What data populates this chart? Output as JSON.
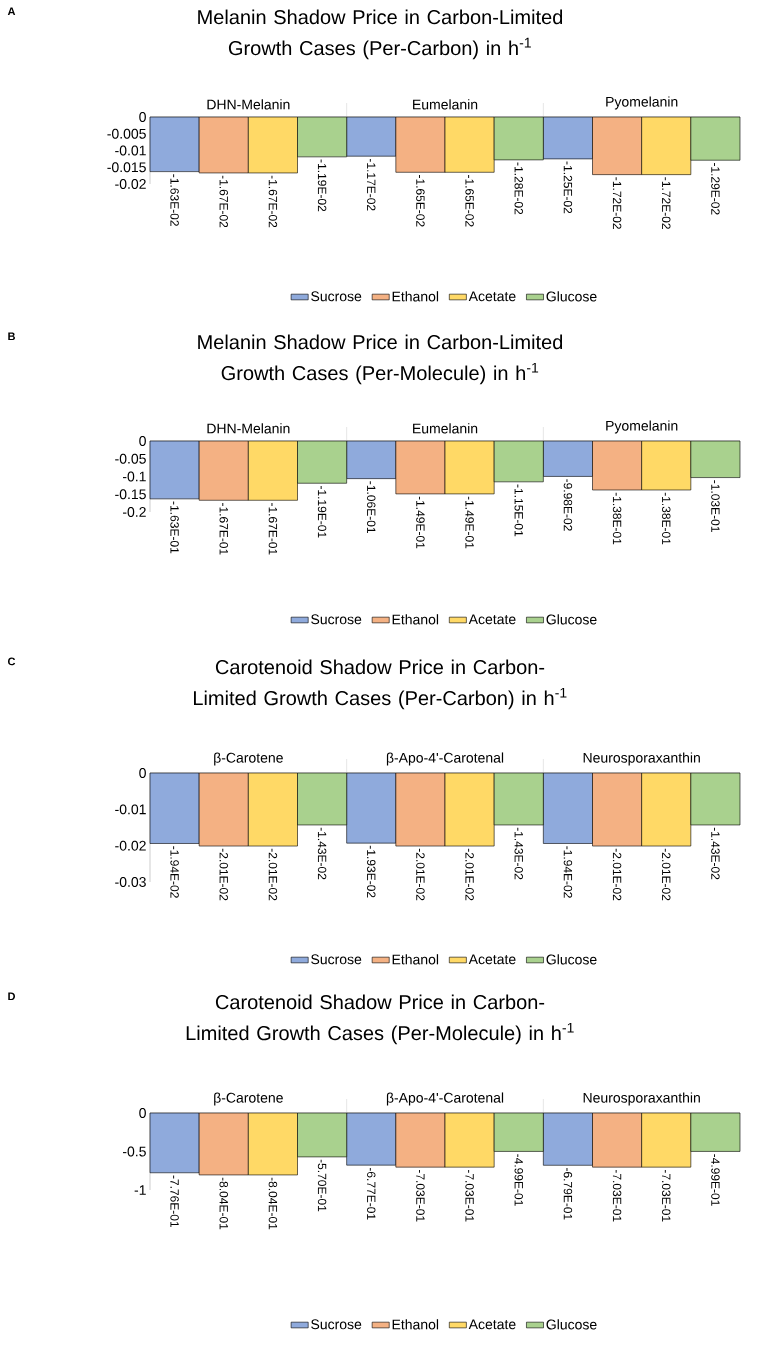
{
  "chart_data": [
    {
      "type": "bar",
      "title": "Melanin Shadow Price in Carbon-Limited Growth Cases (Per-Carbon) in h$^{-1}$",
      "annotations": [
        "A"
      ],
      "categories": [
        "DHN-Melanin",
        "Eumelanin",
        "Pyomelanin"
      ],
      "series": [
        {
          "name": "Sucrose",
          "color": "#8faadc",
          "values": [
            -0.0163,
            -0.0117,
            -0.0125
          ],
          "value_labels": [
            "-1.63E-02",
            "-1.17E-02",
            "-1.25E-02"
          ]
        },
        {
          "name": "Ethanol",
          "color": "#f4b183",
          "values": [
            -0.0167,
            -0.0165,
            -0.0172
          ],
          "value_labels": [
            "-1.67E-02",
            "-1.65E-02",
            "-1.72E-02"
          ]
        },
        {
          "name": "Acetate",
          "color": "#ffd966",
          "values": [
            -0.0167,
            -0.0165,
            -0.0172
          ],
          "value_labels": [
            "-1.67E-02",
            "-1.65E-02",
            "-1.72E-02"
          ]
        },
        {
          "name": "Glucose",
          "color": "#a9d18e",
          "values": [
            -0.0119,
            -0.0128,
            -0.0129
          ],
          "value_labels": [
            "-1.19E-02",
            "-1.28E-02",
            "-1.29E-02"
          ]
        }
      ],
      "ylim": [
        -0.02,
        0
      ],
      "yticks": [
        0,
        -0.005,
        -0.01,
        -0.015,
        -0.02
      ],
      "legend": "bottom"
    },
    {
      "type": "bar",
      "title": "Melanin Shadow Price in Carbon-Limited Growth Cases (Per-Molecule) in h$^{-1}$",
      "annotations": [
        "B"
      ],
      "categories": [
        "DHN-Melanin",
        "Eumelanin",
        "Pyomelanin"
      ],
      "series": [
        {
          "name": "Sucrose",
          "color": "#8faadc",
          "values": [
            -0.163,
            -0.106,
            -0.0998
          ],
          "value_labels": [
            "-1.63E-01",
            "-1.06E-01",
            "-9.98E-02"
          ]
        },
        {
          "name": "Ethanol",
          "color": "#f4b183",
          "values": [
            -0.167,
            -0.149,
            -0.138
          ],
          "value_labels": [
            "-1.67E-01",
            "-1.49E-01",
            "-1.38E-01"
          ]
        },
        {
          "name": "Acetate",
          "color": "#ffd966",
          "values": [
            -0.167,
            -0.149,
            -0.138
          ],
          "value_labels": [
            "-1.67E-01",
            "-1.49E-01",
            "-1.38E-01"
          ]
        },
        {
          "name": "Glucose",
          "color": "#a9d18e",
          "values": [
            -0.119,
            -0.115,
            -0.103
          ],
          "value_labels": [
            "-1.19E-01",
            "-1.15E-01",
            "-1.03E-01"
          ]
        }
      ],
      "ylim": [
        -0.2,
        0
      ],
      "yticks": [
        0,
        -0.05,
        -0.1,
        -0.15,
        -0.2
      ],
      "legend": "bottom"
    },
    {
      "type": "bar",
      "title": "Carotenoid Shadow Price in Carbon-Limited Growth Cases (Per-Carbon) in h$^{-1}$",
      "annotations": [
        "C"
      ],
      "categories": [
        "β-Carotene",
        "β-Apo-4'-Carotenal",
        "Neurosporaxanthin"
      ],
      "series": [
        {
          "name": "Sucrose",
          "color": "#8faadc",
          "values": [
            -0.0194,
            -0.0193,
            -0.0194
          ],
          "value_labels": [
            "-1.94E-02",
            "-1.93E-02",
            "-1.94E-02"
          ]
        },
        {
          "name": "Ethanol",
          "color": "#f4b183",
          "values": [
            -0.0201,
            -0.0201,
            -0.0201
          ],
          "value_labels": [
            "-2.01E-02",
            "-2.01E-02",
            "-2.01E-02"
          ]
        },
        {
          "name": "Acetate",
          "color": "#ffd966",
          "values": [
            -0.0201,
            -0.0201,
            -0.0201
          ],
          "value_labels": [
            "-2.01E-02",
            "-2.01E-02",
            "-2.01E-02"
          ]
        },
        {
          "name": "Glucose",
          "color": "#a9d18e",
          "values": [
            -0.0143,
            -0.0143,
            -0.0143
          ],
          "value_labels": [
            "-1.43E-02",
            "-1.43E-02",
            "-1.43E-02"
          ]
        }
      ],
      "ylim": [
        -0.03,
        0
      ],
      "yticks": [
        0,
        -0.01,
        -0.02,
        -0.03
      ],
      "legend": "bottom"
    },
    {
      "type": "bar",
      "title": "Carotenoid Shadow Price in Carbon-Limited Growth Cases (Per-Molecule) in h$^{-1}$",
      "annotations": [
        "D"
      ],
      "categories": [
        "β-Carotene",
        "β-Apo-4'-Carotenal",
        "Neurosporaxanthin"
      ],
      "series": [
        {
          "name": "Sucrose",
          "color": "#8faadc",
          "values": [
            -0.776,
            -0.677,
            -0.679
          ],
          "value_labels": [
            "-7.76E-01",
            "-6.77E-01",
            "-6.79E-01"
          ]
        },
        {
          "name": "Ethanol",
          "color": "#f4b183",
          "values": [
            -0.804,
            -0.703,
            -0.703
          ],
          "value_labels": [
            "-8.04E-01",
            "-7.03E-01",
            "-7.03E-01"
          ]
        },
        {
          "name": "Acetate",
          "color": "#ffd966",
          "values": [
            -0.804,
            -0.703,
            -0.703
          ],
          "value_labels": [
            "-8.04E-01",
            "-7.03E-01",
            "-7.03E-01"
          ]
        },
        {
          "name": "Glucose",
          "color": "#a9d18e",
          "values": [
            -0.57,
            -0.499,
            -0.499
          ],
          "value_labels": [
            "-5.70E-01",
            "-4.99E-01",
            "-4.99E-01"
          ]
        }
      ],
      "ylim": [
        -1,
        0
      ],
      "yticks": [
        0,
        -0.5,
        -1
      ],
      "legend": "bottom"
    }
  ]
}
